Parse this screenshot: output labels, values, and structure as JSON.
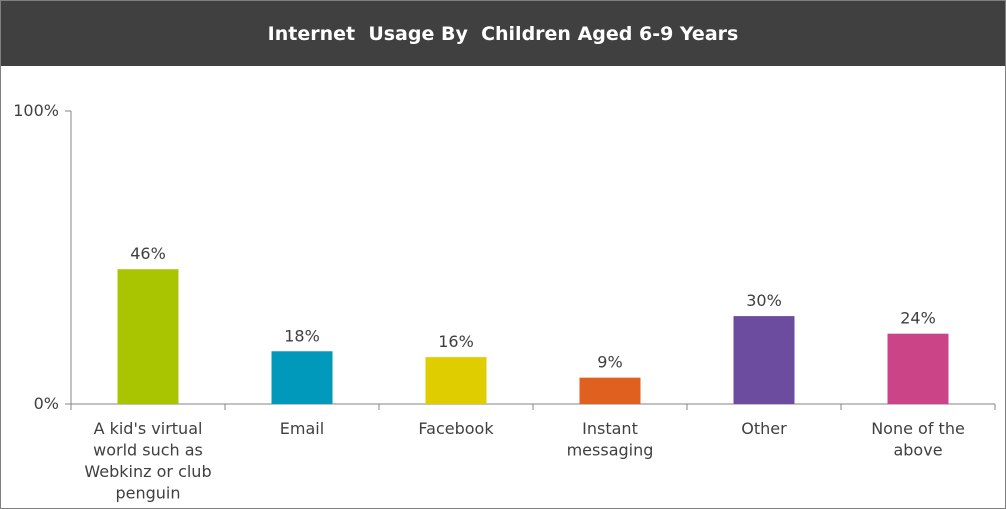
{
  "title": "Internet  Usage By  Children Aged 6-9 Years",
  "chart_data": {
    "type": "bar",
    "title": "Internet  Usage By  Children Aged 6-9 Years",
    "categories": [
      "A kid's virtual world such as Webkinz or club penguin",
      "Email",
      "Facebook",
      "Instant messaging",
      "Other",
      "None of the above"
    ],
    "category_lines": [
      [
        "A kid's virtual",
        "world such as",
        "Webkinz or club",
        "penguin"
      ],
      [
        "Email"
      ],
      [
        "Facebook"
      ],
      [
        "Instant",
        "messaging"
      ],
      [
        "Other"
      ],
      [
        "None of the",
        "above"
      ]
    ],
    "values": [
      46,
      18,
      16,
      9,
      30,
      24
    ],
    "data_labels": [
      "46%",
      "18%",
      "16%",
      "9%",
      "30%",
      "24%"
    ],
    "colors": [
      "#a9c400",
      "#0099bb",
      "#e0cd00",
      "#e06020",
      "#6b4c9f",
      "#cc4488"
    ],
    "ylim": [
      0,
      100
    ],
    "yticks": [
      "0%",
      "100%"
    ],
    "xlabel": "",
    "ylabel": "",
    "grid": false,
    "legend": "none"
  }
}
